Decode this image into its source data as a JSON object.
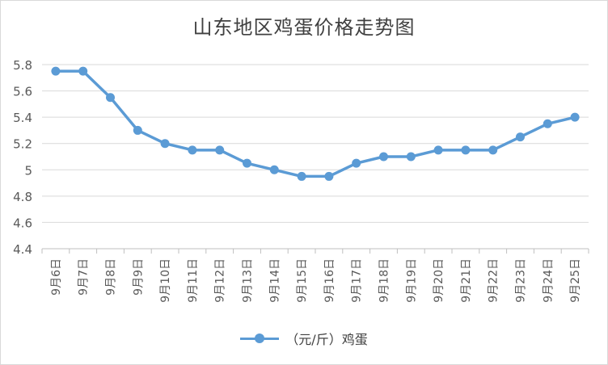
{
  "chart_data": {
    "type": "line",
    "title": "山东地区鸡蛋价格走势图",
    "categories": [
      "9月6日",
      "9月7日",
      "9月8日",
      "9月9日",
      "9月10日",
      "9月11日",
      "9月12日",
      "9月13日",
      "9月14日",
      "9月15日",
      "9月16日",
      "9月17日",
      "9月18日",
      "9月19日",
      "9月20日",
      "9月21日",
      "9月22日",
      "9月23日",
      "9月24日",
      "9月25日"
    ],
    "series": [
      {
        "name": "（元/斤）鸡蛋",
        "values": [
          5.75,
          5.75,
          5.55,
          5.3,
          5.2,
          5.15,
          5.15,
          5.05,
          5.0,
          4.95,
          4.95,
          5.05,
          5.1,
          5.1,
          5.15,
          5.15,
          5.15,
          5.25,
          5.35,
          5.4
        ],
        "color": "#5b9bd5"
      }
    ],
    "ylim": [
      4.4,
      5.8
    ],
    "yticks": [
      "4.4",
      "4.6",
      "4.8",
      "5",
      "5.2",
      "5.4",
      "5.6",
      "5.8"
    ],
    "grid": true,
    "legend_position": "bottom",
    "xlabel": "",
    "ylabel": ""
  }
}
